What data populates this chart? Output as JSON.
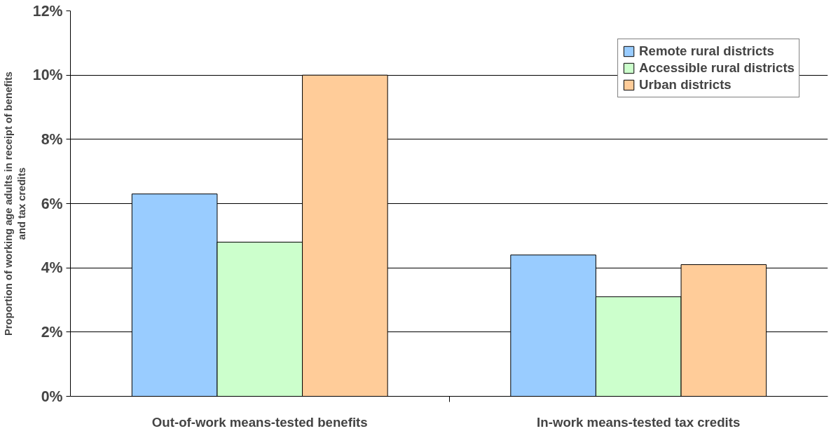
{
  "chart_data": {
    "type": "bar",
    "ylabel": "Proportion of working age adults in receipt of benefits\nand tax credits",
    "categories": [
      "Out-of-work means-tested benefits",
      "In-work means-tested tax credits"
    ],
    "series": [
      {
        "name": "Remote rural districts",
        "color": "#99ccff",
        "values": [
          6.3,
          4.4
        ]
      },
      {
        "name": "Accessible rural districts",
        "color": "#ccffcc",
        "values": [
          4.8,
          3.1
        ]
      },
      {
        "name": "Urban districts",
        "color": "#ffcc99",
        "values": [
          10.0,
          4.1
        ]
      }
    ],
    "ylim": [
      0,
      12
    ],
    "yticks": [
      {
        "value": 0,
        "label": "0%"
      },
      {
        "value": 2,
        "label": "2%"
      },
      {
        "value": 4,
        "label": "4%"
      },
      {
        "value": 6,
        "label": "6%"
      },
      {
        "value": 8,
        "label": "8%"
      },
      {
        "value": 10,
        "label": "10%"
      },
      {
        "value": 12,
        "label": "12%"
      }
    ],
    "grid": "y",
    "legend": "top right"
  }
}
